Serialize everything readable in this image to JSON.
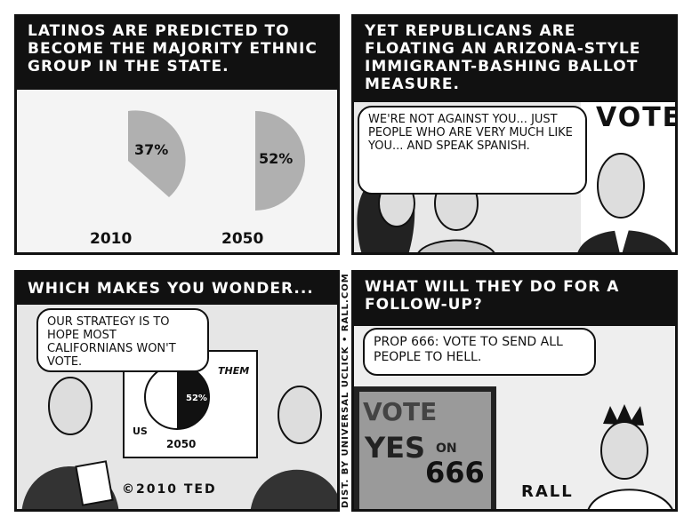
{
  "panel1": {
    "caption": "Latinos are predicted to become the majority ethnic group in the state.",
    "pie_2010": {
      "label": "2010",
      "value": 37,
      "display": "37%"
    },
    "pie_2050": {
      "label": "2050",
      "value": 52,
      "display": "52%"
    }
  },
  "panel2": {
    "caption": "Yet Republicans are floating an Arizona-style immigrant-bashing ballot measure.",
    "speech": "We're not against you... just people who are very much like you... and speak Spanish.",
    "sign": "VOTE"
  },
  "panel3": {
    "caption": "Which makes you wonder...",
    "speech": "Our strategy is to hope most Californians won't vote.",
    "chart_them": "THEM",
    "chart_us": "US",
    "chart_value": "52%",
    "chart_year": "2050",
    "copyright": "©2010 TED"
  },
  "panel4": {
    "caption": "What will they do for a follow-up?",
    "speech": "Prop 666: Vote to send all people to hell.",
    "tv_line1": "VOTE",
    "tv_line2": "YES",
    "tv_on": "ON",
    "tv_number": "666",
    "signature": "RALL"
  },
  "credit": "DIST. BY UNIVERSAL UCLICK • RALL.COM",
  "colors": {
    "ink": "#111111",
    "pie_gray": "#b0b0b0",
    "paper": "#f2f2f2"
  }
}
